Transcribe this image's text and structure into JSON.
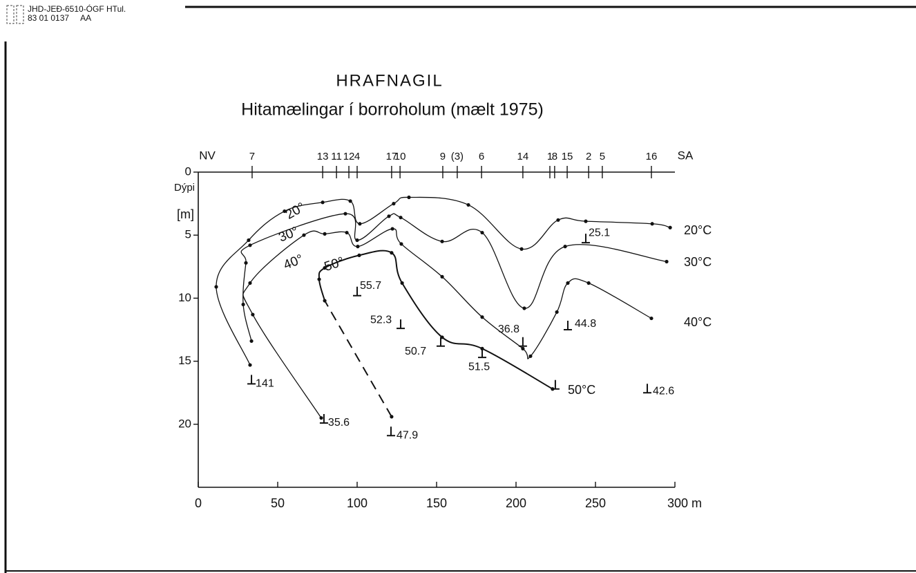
{
  "header": {
    "line1": "JHD-JEÐ-6510-ÓGF HTul.",
    "line2": "83 01 0137     AA"
  },
  "chart_data": {
    "type": "line",
    "title": "HRAFNAGIL",
    "subtitle": "Hitamælingar í borroholum (mælt 1975)",
    "y_label": "Dýpi",
    "y_unit": "[m]",
    "top_left_label": "NV",
    "top_right_label": "SA",
    "xlim": [
      0,
      300
    ],
    "xticks": [
      0,
      50,
      100,
      150,
      200,
      250,
      {
        "value": 300,
        "label": "300 m"
      }
    ],
    "ylim": [
      0,
      25
    ],
    "yticks": [
      0,
      5,
      10,
      15,
      20
    ],
    "y_inverted": true,
    "color": "#111111",
    "boreholes": {
      "labels": [
        "7",
        "13",
        "11",
        "12",
        "4",
        "17",
        "10",
        "9",
        "(3)",
        "6",
        "14",
        "1",
        "8",
        "15",
        "2",
        "5",
        "16"
      ],
      "x": [
        33.9,
        78.3,
        87,
        94.8,
        100,
        121.7,
        127,
        153.9,
        163,
        178.3,
        204.3,
        221.3,
        224.3,
        232.2,
        245.7,
        254.3,
        285.2
      ]
    },
    "series": [
      {
        "name": "20°C",
        "curve_label": "20°",
        "x": [
          32.6,
          11.3,
          31.7,
          54.3,
          78.3,
          95.7,
          101.7,
          123,
          132.6,
          170,
          203.5,
          226.5,
          243.9,
          285.7,
          297
        ],
        "values": [
          15.3,
          9.1,
          5.4,
          3.1,
          2.4,
          2.3,
          4.1,
          2.5,
          2.0,
          2.6,
          6.1,
          3.8,
          3.9,
          4.1,
          4.4
        ]
      },
      {
        "name": "30°C",
        "curve_label": "30°",
        "x": [
          33.5,
          28.3,
          30,
          32.6,
          92.6,
          100,
          120,
          127.4,
          153.5,
          178.7,
          205.2,
          230.9,
          294.8
        ],
        "values": [
          13.4,
          10.5,
          7.2,
          5.8,
          3.3,
          5.4,
          3.5,
          3.6,
          5.5,
          4.8,
          10.8,
          5.9,
          7.1
        ]
      },
      {
        "name": "40°C",
        "curve_label": "40°",
        "x": [
          77.4,
          34.3,
          32.6,
          66.5,
          79.6,
          93.5,
          100.4,
          122.2,
          127.8,
          153.5,
          178.7,
          204.3,
          209.1,
          225.7,
          232.6,
          245.7,
          285.2
        ],
        "values": [
          19.5,
          11.3,
          8.8,
          5.0,
          4.9,
          4.8,
          5.9,
          4.5,
          5.7,
          8.3,
          11.5,
          14.0,
          14.6,
          11.1,
          8.8,
          8.8,
          11.6
        ]
      },
      {
        "name": "50°C",
        "curve_label": "50°",
        "dashed_first_segment": true,
        "x": [
          121.7,
          79.6,
          76.1,
          79.6,
          101.3,
          121.7,
          128.3,
          153.5,
          178.7,
          223
        ],
        "values": [
          19.4,
          10.2,
          8.5,
          7.6,
          6.6,
          6.4,
          8.8,
          13.1,
          14.0,
          17.2
        ]
      }
    ],
    "bottom_temps": {
      "labels": [
        "141",
        "35.6",
        "47.9",
        "55.7",
        "52.3",
        "50.7",
        "51.5",
        "36.8",
        "44.8",
        "25.1",
        "42.6"
      ],
      "x": [
        33.5,
        79.1,
        121.3,
        100,
        127.4,
        152.6,
        178.7,
        204.3,
        232.6,
        243.9,
        282.6
      ],
      "depth": [
        16.8,
        19.9,
        20.9,
        9.8,
        12.4,
        13.8,
        14.7,
        13.8,
        12.5,
        5.6,
        17.5
      ]
    }
  }
}
